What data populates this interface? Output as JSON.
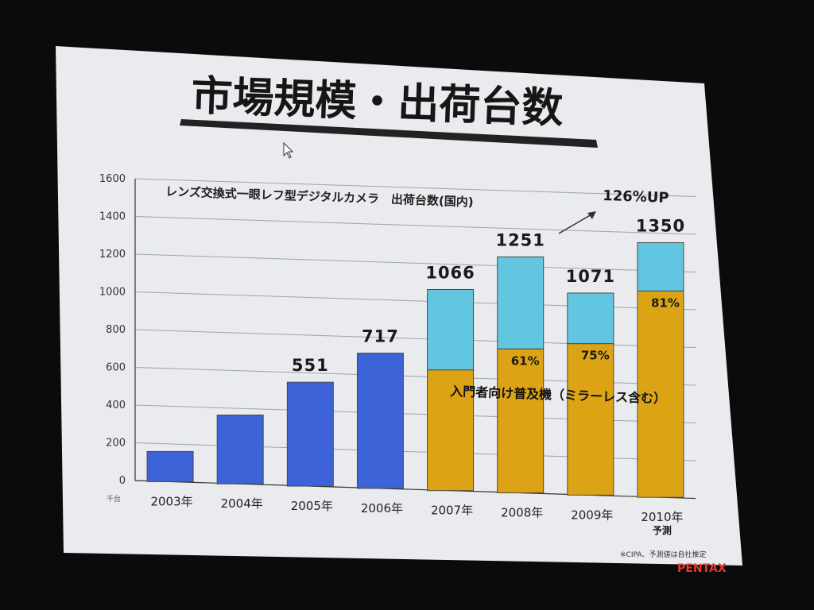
{
  "slide": {
    "title": "市場規模・出荷台数",
    "source_note": "※CIPA、予測値は自社推定",
    "brand": "PENTAX"
  },
  "colors": {
    "screen": "#e9ebee",
    "bar_blue": "#3d63d8",
    "bar_cyan": "#62c6e0",
    "bar_gold": "#dca415",
    "bar_border": "#4a4a4a"
  },
  "chart_data": {
    "type": "bar",
    "title": "レンズ交換式一眼レフ型デジタルカメラ　出荷台数(国内)",
    "unit_label": "千台",
    "categories": [
      "2003年",
      "2004年",
      "2005年",
      "2006年",
      "2007年",
      "2008年",
      "2009年",
      "2010年"
    ],
    "category_notes": [
      "",
      "",
      "",
      "",
      "",
      "",
      "",
      "予測"
    ],
    "ylim": [
      0,
      1600
    ],
    "yticks": [
      0,
      200,
      400,
      600,
      800,
      1000,
      1200,
      1400,
      1600
    ],
    "grid": true,
    "totals": [
      160,
      365,
      551,
      717,
      1066,
      1251,
      1071,
      1350
    ],
    "total_labels": [
      "",
      "",
      "551",
      "717",
      "1066",
      "1251",
      "1071",
      "1350"
    ],
    "series": [
      {
        "name": "",
        "color": "#3d63d8",
        "values": [
          160,
          365,
          551,
          717,
          null,
          null,
          null,
          null
        ]
      },
      {
        "name": "入門者向け普及機（ミラーレス含む）",
        "color": "#dca415",
        "values": [
          null,
          null,
          null,
          null,
          640,
          763,
          803,
          1094
        ]
      },
      {
        "name": "",
        "color": "#62c6e0",
        "values": [
          null,
          null,
          null,
          null,
          426,
          488,
          268,
          256
        ]
      }
    ],
    "share_labels": [
      "",
      "",
      "",
      "",
      "",
      "61%",
      "75%",
      "81%"
    ],
    "annotations": [
      {
        "text": "126%UP"
      }
    ]
  }
}
